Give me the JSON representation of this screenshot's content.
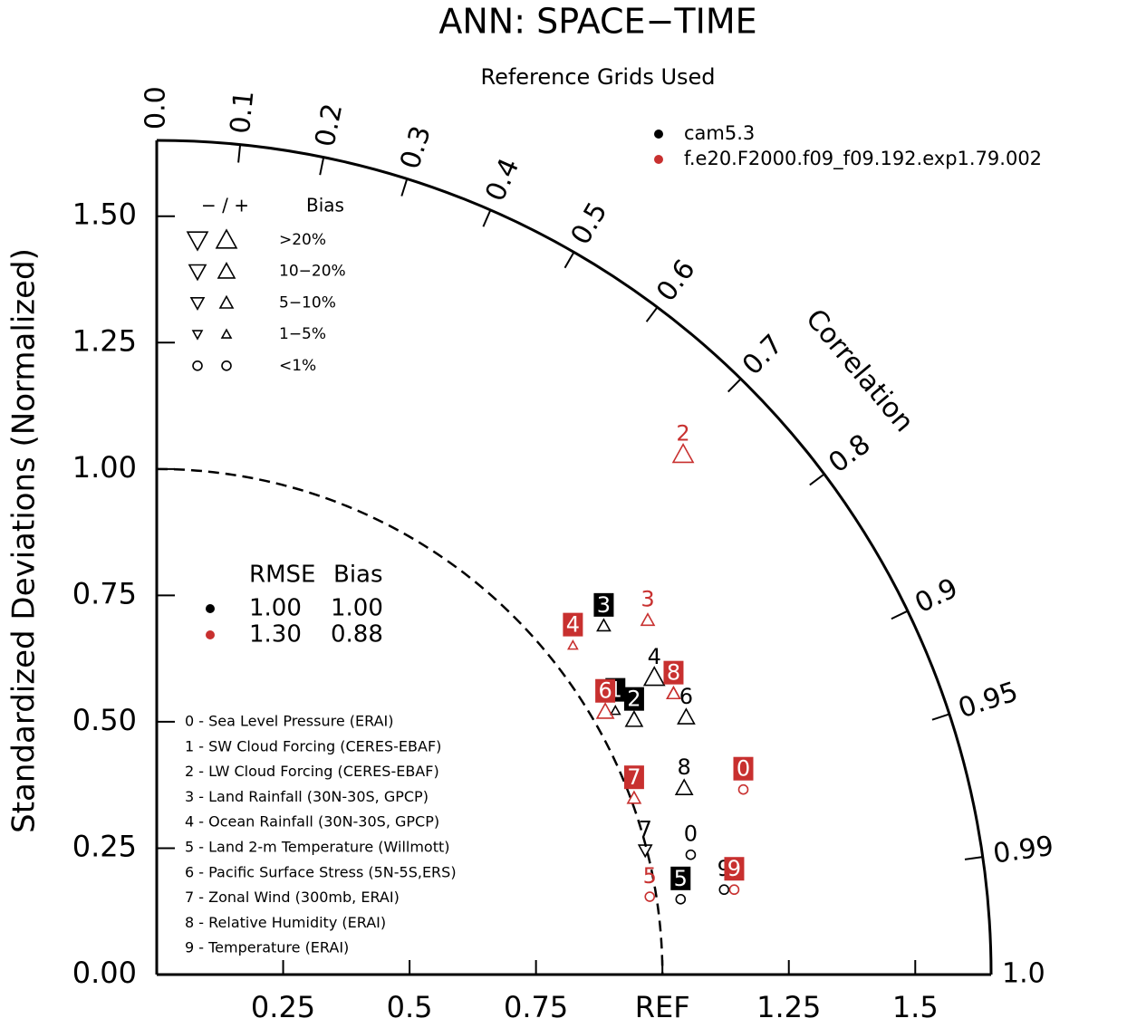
{
  "chart_data": {
    "type": "taylor",
    "title": "ANN: SPACE−TIME",
    "subtitle": "Reference Grids Used",
    "ylabel": "Standardized Deviations (Normalized)",
    "corr_label": "Correlation",
    "xlim": [
      0,
      1.65
    ],
    "ylim": [
      0,
      1.65
    ],
    "xticks": [
      0.25,
      0.5,
      0.75,
      {
        "value": 1,
        "label": "REF"
      },
      1.25,
      1.5
    ],
    "yticks": [
      {
        "value": 0,
        "label": "0.00"
      },
      0.25,
      {
        "value": 0.5,
        "label": "0.50"
      },
      0.75,
      {
        "value": 1,
        "label": "1.00"
      },
      1.25,
      {
        "value": 1.5,
        "label": "1.50"
      }
    ],
    "corr_ticks": [
      {
        "value": 0,
        "label": "0.0"
      },
      0.1,
      0.2,
      0.3,
      0.4,
      0.5,
      0.6,
      0.7,
      0.8,
      0.9,
      0.95,
      0.99,
      {
        "value": 1,
        "label": "1.0"
      }
    ],
    "ref_arc": 1,
    "bias_legend": {
      "sign_header": "− / +",
      "title": "Bias",
      "categories": [
        ">20%",
        "10−20%",
        "5−10%",
        "1−5%",
        "<1%"
      ]
    },
    "stats_legend": {
      "header": [
        "RMSE",
        "Bias"
      ],
      "rows": [
        [
          "1.00",
          "1.00"
        ],
        [
          "1.30",
          "0.88"
        ]
      ]
    },
    "variables": [
      "0 - Sea Level Pressure (ERAI)",
      "1 - SW Cloud Forcing (CERES-EBAF)",
      "2 - LW Cloud Forcing (CERES-EBAF)",
      "3 - Land Rainfall (30N-30S, GPCP)",
      "4 - Ocean Rainfall (30N-30S, GPCP)",
      "5 - Land 2-m Temperature (Willmott)",
      "6 - Pacific Surface Stress (5N-5S,ERS)",
      "7 - Zonal Wind (300mb, ERAI)",
      "8 - Relative Humidity (ERAI)",
      "9 - Temperature (ERAI)"
    ],
    "series": [
      {
        "name": "cam5.3",
        "color": "#000000",
        "labels": [
          "0",
          "1",
          "2",
          "3",
          "4",
          "5",
          "6",
          "7",
          "8",
          "9"
        ],
        "x": [
          1.056,
          0.907,
          0.944,
          0.884,
          0.984,
          1.036,
          1.047,
          0.966,
          1.043,
          1.122
        ],
        "y": [
          0.237,
          0.522,
          0.504,
          0.69,
          0.588,
          0.149,
          0.509,
          0.246,
          0.369,
          0.168
        ],
        "bias": [
          "<1%",
          "1−5%",
          "10−20%",
          "5−10%",
          ">20%",
          "<1%",
          "10−20%",
          "5−10%",
          "10−20%",
          "<1%"
        ],
        "sign": [
          "+",
          "+",
          "+",
          "+",
          "+",
          "+",
          "+",
          "−",
          "+",
          "+"
        ],
        "boxed": [
          false,
          true,
          true,
          true,
          false,
          true,
          false,
          false,
          false,
          false
        ]
      },
      {
        "name": "f.e20.F2000.f09_f09.192.exp1.79.002",
        "color": "#c8302f",
        "labels": [
          "0",
          "1",
          "2",
          "3",
          "4",
          "5",
          "6",
          "7",
          "8",
          "9"
        ],
        "x": [
          1.16,
          1.022,
          1.041,
          0.971,
          0.823,
          0.975,
          0.887,
          0.944,
          1.022,
          1.142
        ],
        "y": [
          0.366,
          0.556,
          1.029,
          0.701,
          0.651,
          0.154,
          0.52,
          0.349,
          0.556,
          0.168
        ],
        "bias": [
          "<1%",
          "5−10%",
          ">20%",
          "5−10%",
          "1−5%",
          "<1%",
          "10−20%",
          "5−10%",
          "5−10%",
          "<1%"
        ],
        "sign": [
          "+",
          "+",
          "+",
          "+",
          "+",
          "+",
          "+",
          "+",
          "+",
          "+"
        ],
        "boxed": [
          true,
          false,
          false,
          false,
          true,
          false,
          true,
          true,
          true,
          true
        ]
      }
    ]
  }
}
